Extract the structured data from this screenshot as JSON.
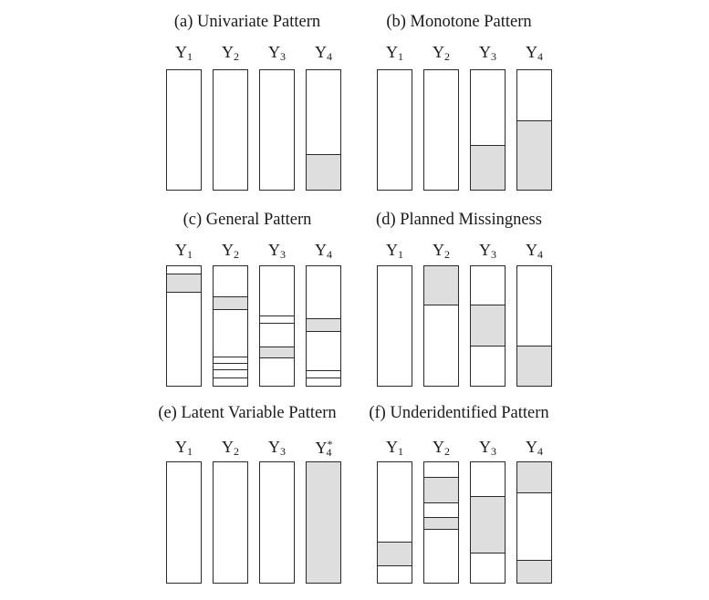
{
  "panels": [
    {
      "title": "(a) Univariate Pattern",
      "vars": [
        {
          "name": "Y",
          "sub": "1",
          "sup": "",
          "missing": [],
          "lines": []
        },
        {
          "name": "Y",
          "sub": "2",
          "sup": "",
          "missing": [],
          "lines": []
        },
        {
          "name": "Y",
          "sub": "3",
          "sup": "",
          "missing": [],
          "lines": []
        },
        {
          "name": "Y",
          "sub": "4",
          "sup": "",
          "missing": [
            [
              0.71,
              1.0
            ]
          ],
          "lines": [
            0.71
          ]
        }
      ]
    },
    {
      "title": "(b) Monotone Pattern",
      "vars": [
        {
          "name": "Y",
          "sub": "1",
          "sup": "",
          "missing": [],
          "lines": []
        },
        {
          "name": "Y",
          "sub": "2",
          "sup": "",
          "missing": [],
          "lines": []
        },
        {
          "name": "Y",
          "sub": "3",
          "sup": "",
          "missing": [
            [
              0.63,
              1.0
            ]
          ],
          "lines": [
            0.63
          ]
        },
        {
          "name": "Y",
          "sub": "4",
          "sup": "",
          "missing": [
            [
              0.43,
              1.0
            ]
          ],
          "lines": [
            0.43
          ]
        }
      ]
    },
    {
      "title": "(c) General Pattern",
      "vars": [
        {
          "name": "Y",
          "sub": "1",
          "sup": "",
          "missing": [
            [
              0.07,
              0.22
            ]
          ],
          "lines": [
            0.07,
            0.22
          ]
        },
        {
          "name": "Y",
          "sub": "2",
          "sup": "",
          "missing": [
            [
              0.26,
              0.37
            ]
          ],
          "lines": [
            0.26,
            0.37,
            0.76,
            0.82,
            0.87,
            0.94
          ]
        },
        {
          "name": "Y",
          "sub": "3",
          "sup": "",
          "missing": [
            [
              0.68,
              0.77
            ]
          ],
          "lines": [
            0.42,
            0.48,
            0.68,
            0.77
          ]
        },
        {
          "name": "Y",
          "sub": "4",
          "sup": "",
          "missing": [
            [
              0.44,
              0.55
            ]
          ],
          "lines": [
            0.44,
            0.55,
            0.88,
            0.94
          ]
        }
      ]
    },
    {
      "title": "(d) Planned Missingness",
      "vars": [
        {
          "name": "Y",
          "sub": "1",
          "sup": "",
          "missing": [],
          "lines": []
        },
        {
          "name": "Y",
          "sub": "2",
          "sup": "",
          "missing": [
            [
              0.0,
              0.33
            ]
          ],
          "lines": [
            0.33
          ]
        },
        {
          "name": "Y",
          "sub": "3",
          "sup": "",
          "missing": [
            [
              0.33,
              0.67
            ]
          ],
          "lines": [
            0.33,
            0.67
          ]
        },
        {
          "name": "Y",
          "sub": "4",
          "sup": "",
          "missing": [
            [
              0.67,
              1.0
            ]
          ],
          "lines": [
            0.67
          ]
        }
      ]
    },
    {
      "title": "(e) Latent Variable Pattern",
      "vars": [
        {
          "name": "Y",
          "sub": "1",
          "sup": "",
          "missing": [],
          "lines": []
        },
        {
          "name": "Y",
          "sub": "2",
          "sup": "",
          "missing": [],
          "lines": []
        },
        {
          "name": "Y",
          "sub": "3",
          "sup": "",
          "missing": [],
          "lines": []
        },
        {
          "name": "Y",
          "sub": "4",
          "sup": "*",
          "missing": [
            [
              0.0,
              1.0
            ]
          ],
          "lines": []
        }
      ]
    },
    {
      "title": "(f) Underidentified Pattern",
      "vars": [
        {
          "name": "Y",
          "sub": "1",
          "sup": "",
          "missing": [
            [
              0.67,
              0.86
            ]
          ],
          "lines": [
            0.67,
            0.86
          ]
        },
        {
          "name": "Y",
          "sub": "2",
          "sup": "",
          "missing": [
            [
              0.13,
              0.34
            ],
            [
              0.46,
              0.56
            ]
          ],
          "lines": [
            0.13,
            0.34,
            0.46,
            0.56
          ]
        },
        {
          "name": "Y",
          "sub": "3",
          "sup": "",
          "missing": [
            [
              0.29,
              0.76
            ]
          ],
          "lines": [
            0.29,
            0.76
          ]
        },
        {
          "name": "Y",
          "sub": "4",
          "sup": "",
          "missing": [
            [
              0.0,
              0.26
            ],
            [
              0.82,
              1.0
            ]
          ],
          "lines": [
            0.26,
            0.82
          ]
        }
      ]
    }
  ]
}
